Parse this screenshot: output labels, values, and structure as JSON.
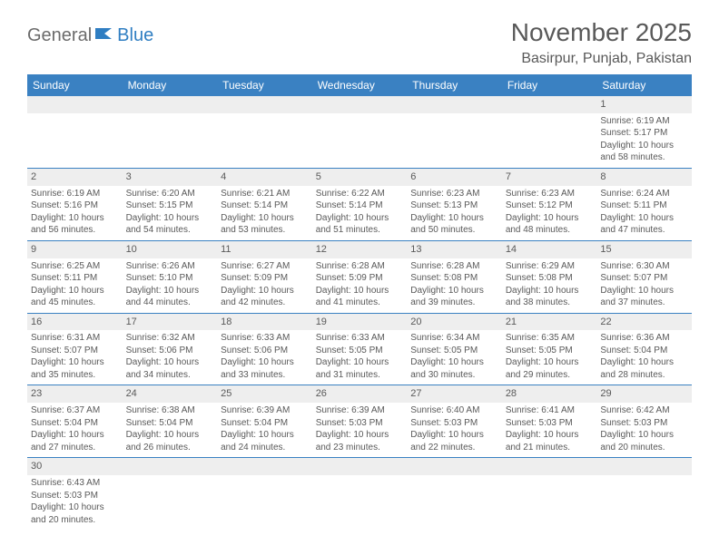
{
  "logo": {
    "part1": "General",
    "part2": "Blue"
  },
  "title": "November 2025",
  "location": "Basirpur, Punjab, Pakistan",
  "colors": {
    "header_bg": "#3a81c2",
    "header_text": "#ffffff",
    "daynum_bg": "#eeeeee",
    "text": "#595959",
    "border": "#3a81c2"
  },
  "dayNames": [
    "Sunday",
    "Monday",
    "Tuesday",
    "Wednesday",
    "Thursday",
    "Friday",
    "Saturday"
  ],
  "weeks": [
    [
      null,
      null,
      null,
      null,
      null,
      null,
      {
        "n": "1",
        "sr": "Sunrise: 6:19 AM",
        "ss": "Sunset: 5:17 PM",
        "dl": "Daylight: 10 hours and 58 minutes."
      }
    ],
    [
      {
        "n": "2",
        "sr": "Sunrise: 6:19 AM",
        "ss": "Sunset: 5:16 PM",
        "dl": "Daylight: 10 hours and 56 minutes."
      },
      {
        "n": "3",
        "sr": "Sunrise: 6:20 AM",
        "ss": "Sunset: 5:15 PM",
        "dl": "Daylight: 10 hours and 54 minutes."
      },
      {
        "n": "4",
        "sr": "Sunrise: 6:21 AM",
        "ss": "Sunset: 5:14 PM",
        "dl": "Daylight: 10 hours and 53 minutes."
      },
      {
        "n": "5",
        "sr": "Sunrise: 6:22 AM",
        "ss": "Sunset: 5:14 PM",
        "dl": "Daylight: 10 hours and 51 minutes."
      },
      {
        "n": "6",
        "sr": "Sunrise: 6:23 AM",
        "ss": "Sunset: 5:13 PM",
        "dl": "Daylight: 10 hours and 50 minutes."
      },
      {
        "n": "7",
        "sr": "Sunrise: 6:23 AM",
        "ss": "Sunset: 5:12 PM",
        "dl": "Daylight: 10 hours and 48 minutes."
      },
      {
        "n": "8",
        "sr": "Sunrise: 6:24 AM",
        "ss": "Sunset: 5:11 PM",
        "dl": "Daylight: 10 hours and 47 minutes."
      }
    ],
    [
      {
        "n": "9",
        "sr": "Sunrise: 6:25 AM",
        "ss": "Sunset: 5:11 PM",
        "dl": "Daylight: 10 hours and 45 minutes."
      },
      {
        "n": "10",
        "sr": "Sunrise: 6:26 AM",
        "ss": "Sunset: 5:10 PM",
        "dl": "Daylight: 10 hours and 44 minutes."
      },
      {
        "n": "11",
        "sr": "Sunrise: 6:27 AM",
        "ss": "Sunset: 5:09 PM",
        "dl": "Daylight: 10 hours and 42 minutes."
      },
      {
        "n": "12",
        "sr": "Sunrise: 6:28 AM",
        "ss": "Sunset: 5:09 PM",
        "dl": "Daylight: 10 hours and 41 minutes."
      },
      {
        "n": "13",
        "sr": "Sunrise: 6:28 AM",
        "ss": "Sunset: 5:08 PM",
        "dl": "Daylight: 10 hours and 39 minutes."
      },
      {
        "n": "14",
        "sr": "Sunrise: 6:29 AM",
        "ss": "Sunset: 5:08 PM",
        "dl": "Daylight: 10 hours and 38 minutes."
      },
      {
        "n": "15",
        "sr": "Sunrise: 6:30 AM",
        "ss": "Sunset: 5:07 PM",
        "dl": "Daylight: 10 hours and 37 minutes."
      }
    ],
    [
      {
        "n": "16",
        "sr": "Sunrise: 6:31 AM",
        "ss": "Sunset: 5:07 PM",
        "dl": "Daylight: 10 hours and 35 minutes."
      },
      {
        "n": "17",
        "sr": "Sunrise: 6:32 AM",
        "ss": "Sunset: 5:06 PM",
        "dl": "Daylight: 10 hours and 34 minutes."
      },
      {
        "n": "18",
        "sr": "Sunrise: 6:33 AM",
        "ss": "Sunset: 5:06 PM",
        "dl": "Daylight: 10 hours and 33 minutes."
      },
      {
        "n": "19",
        "sr": "Sunrise: 6:33 AM",
        "ss": "Sunset: 5:05 PM",
        "dl": "Daylight: 10 hours and 31 minutes."
      },
      {
        "n": "20",
        "sr": "Sunrise: 6:34 AM",
        "ss": "Sunset: 5:05 PM",
        "dl": "Daylight: 10 hours and 30 minutes."
      },
      {
        "n": "21",
        "sr": "Sunrise: 6:35 AM",
        "ss": "Sunset: 5:05 PM",
        "dl": "Daylight: 10 hours and 29 minutes."
      },
      {
        "n": "22",
        "sr": "Sunrise: 6:36 AM",
        "ss": "Sunset: 5:04 PM",
        "dl": "Daylight: 10 hours and 28 minutes."
      }
    ],
    [
      {
        "n": "23",
        "sr": "Sunrise: 6:37 AM",
        "ss": "Sunset: 5:04 PM",
        "dl": "Daylight: 10 hours and 27 minutes."
      },
      {
        "n": "24",
        "sr": "Sunrise: 6:38 AM",
        "ss": "Sunset: 5:04 PM",
        "dl": "Daylight: 10 hours and 26 minutes."
      },
      {
        "n": "25",
        "sr": "Sunrise: 6:39 AM",
        "ss": "Sunset: 5:04 PM",
        "dl": "Daylight: 10 hours and 24 minutes."
      },
      {
        "n": "26",
        "sr": "Sunrise: 6:39 AM",
        "ss": "Sunset: 5:03 PM",
        "dl": "Daylight: 10 hours and 23 minutes."
      },
      {
        "n": "27",
        "sr": "Sunrise: 6:40 AM",
        "ss": "Sunset: 5:03 PM",
        "dl": "Daylight: 10 hours and 22 minutes."
      },
      {
        "n": "28",
        "sr": "Sunrise: 6:41 AM",
        "ss": "Sunset: 5:03 PM",
        "dl": "Daylight: 10 hours and 21 minutes."
      },
      {
        "n": "29",
        "sr": "Sunrise: 6:42 AM",
        "ss": "Sunset: 5:03 PM",
        "dl": "Daylight: 10 hours and 20 minutes."
      }
    ],
    [
      {
        "n": "30",
        "sr": "Sunrise: 6:43 AM",
        "ss": "Sunset: 5:03 PM",
        "dl": "Daylight: 10 hours and 20 minutes."
      },
      null,
      null,
      null,
      null,
      null,
      null
    ]
  ]
}
